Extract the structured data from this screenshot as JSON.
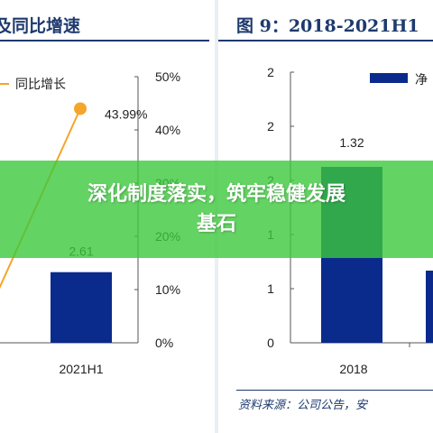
{
  "banner": {
    "line1": "深化制度落实，筑牢稳健发展",
    "line2": "基石"
  },
  "colors": {
    "bar": "#0a2a8c",
    "line": "#f5a52a",
    "title": "#1e3a6e",
    "banner": "#3cc83c"
  },
  "left_panel": {
    "title": "及同比增速"
  },
  "right_panel": {
    "title": "图 9：2018-2021H1",
    "source": "资料来源：公司公告，安"
  },
  "chart_data": [
    {
      "type": "bar",
      "categories": [
        "2021H1"
      ],
      "series": [
        {
          "name": "",
          "values": [
            2.61
          ],
          "labels": [
            "2.61"
          ]
        },
        {
          "name": "同比增长",
          "type": "line",
          "values": [
            43.99
          ],
          "labels": [
            "43.99%"
          ]
        }
      ],
      "legend": [
        "同比增长"
      ],
      "y2_ticks": [
        "0%",
        "10%",
        "20%",
        "30%",
        "40%",
        "50%"
      ],
      "y2lim": [
        0,
        50
      ]
    },
    {
      "type": "bar",
      "categories": [
        "2018"
      ],
      "series": [
        {
          "name": "净",
          "values": [
            1.32
          ],
          "labels": [
            "1.32"
          ]
        }
      ],
      "legend": [
        "净"
      ],
      "y_ticks": [
        "0",
        "1",
        "1",
        "2",
        "2",
        "2"
      ],
      "ylim": [
        0,
        2
      ]
    }
  ]
}
